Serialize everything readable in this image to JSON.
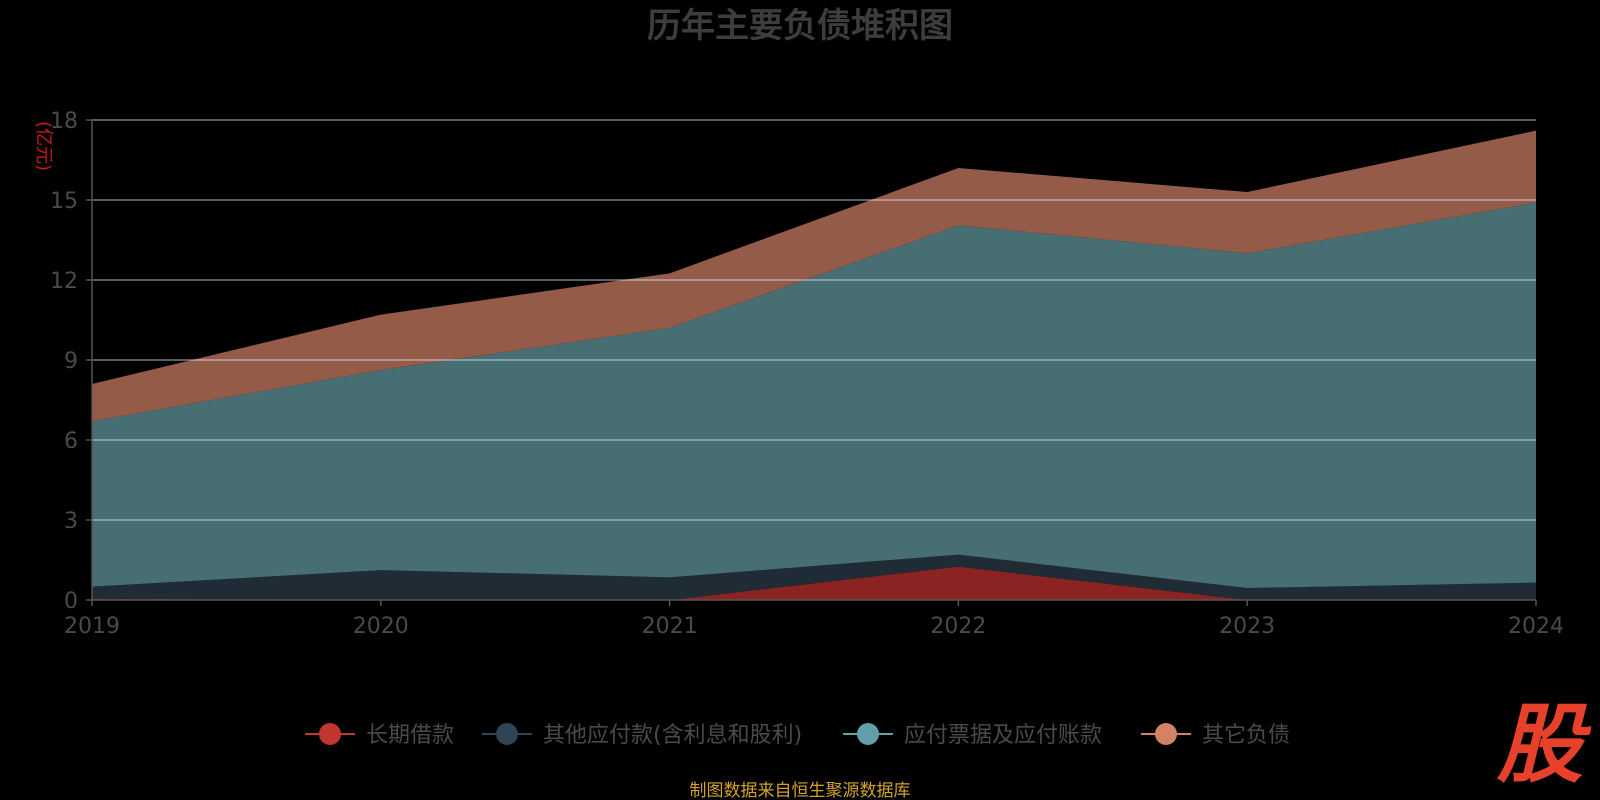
{
  "chart_data": {
    "type": "area",
    "stacked": true,
    "title": "历年主要负债堆积图",
    "unit_label": "(亿元)",
    "categories": [
      "2019",
      "2020",
      "2021",
      "2022",
      "2023",
      "2024"
    ],
    "ylim": [
      0,
      18
    ],
    "yticks": [
      "0",
      "3",
      "6",
      "9",
      "12",
      "15",
      "18"
    ],
    "grid": true,
    "legend_position": "bottom",
    "series": [
      {
        "name": "长期借款",
        "values": [
          0.05,
          0.0,
          0.0,
          1.25,
          0.0,
          0.0
        ],
        "color": "#8b2323",
        "legend_color": "#c23531"
      },
      {
        "name": "其他应付款(含利息和股利)",
        "values": [
          0.45,
          1.12,
          0.85,
          0.45,
          0.45,
          0.65
        ],
        "color": "#202c35",
        "legend_color": "#2f4554"
      },
      {
        "name": "应付票据及应付账款",
        "values": [
          6.2,
          7.5,
          9.35,
          12.35,
          12.55,
          14.25
        ],
        "color": "#466e73",
        "legend_color": "#61a0a8"
      },
      {
        "name": "其它负债",
        "values": [
          1.4,
          2.08,
          2.05,
          2.15,
          2.3,
          2.7
        ],
        "color": "#935b48",
        "legend_color": "#d48265"
      }
    ]
  },
  "source_note": "制图数据来自恒生聚源数据库",
  "logo_text": "股"
}
